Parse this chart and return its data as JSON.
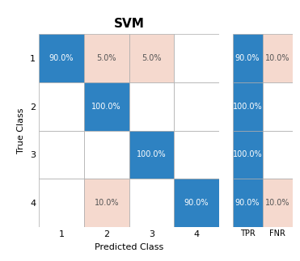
{
  "title": "SVM",
  "confusion_matrix": [
    [
      90.0,
      5.0,
      5.0,
      0.0
    ],
    [
      0.0,
      100.0,
      0.0,
      0.0
    ],
    [
      0.0,
      0.0,
      100.0,
      0.0
    ],
    [
      0.0,
      10.0,
      0.0,
      90.0
    ]
  ],
  "tpr": [
    90.0,
    100.0,
    100.0,
    90.0
  ],
  "fnr": [
    10.0,
    0.0,
    0.0,
    10.0
  ],
  "classes": [
    1,
    2,
    3,
    4
  ],
  "xlabel": "Predicted Class",
  "ylabel": "True Class",
  "blue_color": "#2e82c2",
  "light_pink_color": "#f5d9ce",
  "white_color": "#ffffff",
  "text_blue_color": "#ffffff",
  "text_dark_color": "#555555",
  "tpr_fnr_labels": [
    "TPR",
    "FNR"
  ],
  "bg_color": "#ffffff",
  "title_fontsize": 11,
  "label_fontsize": 8,
  "cell_fontsize": 7,
  "tick_fontsize": 8,
  "grid_color": "#aaaaaa"
}
